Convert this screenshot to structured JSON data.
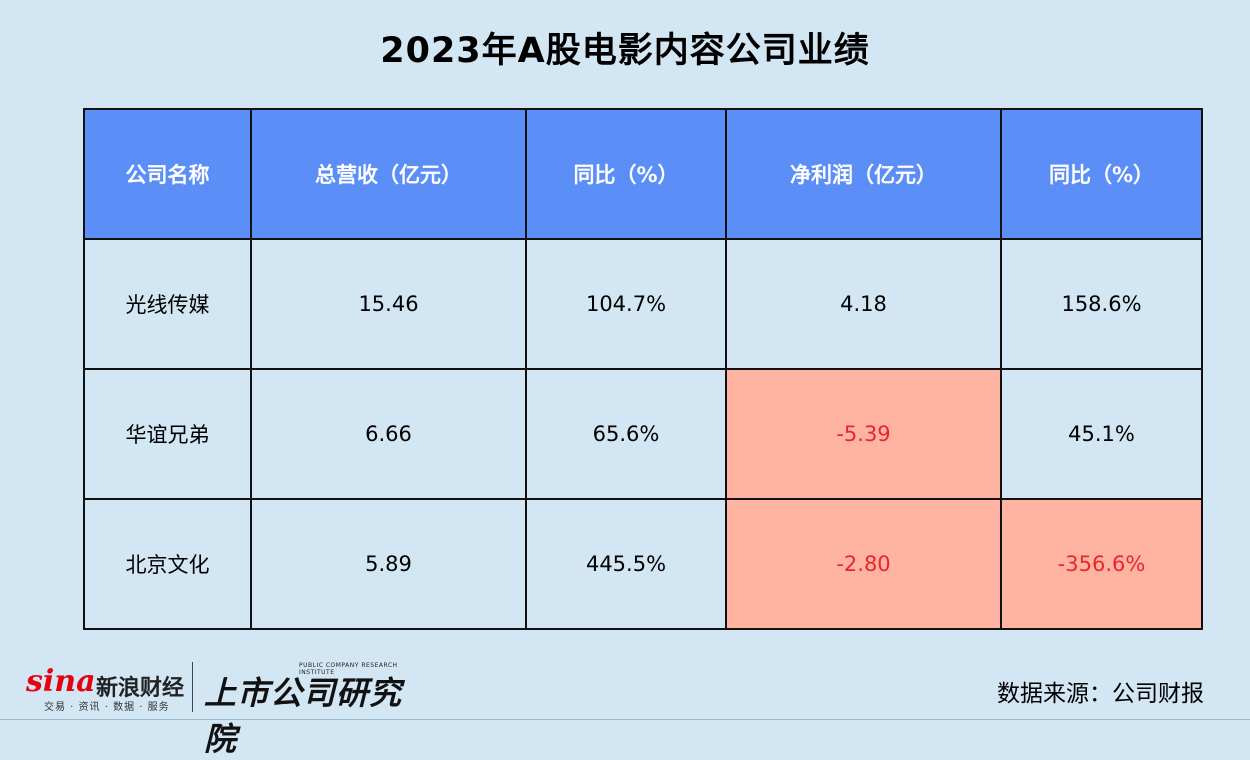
{
  "title": "2023年A股电影内容公司业绩",
  "table": {
    "headers": [
      "公司名称",
      "总营收（亿元）",
      "同比（%）",
      "净利润（亿元）",
      "同比（%）"
    ],
    "rows": [
      {
        "company": "光线传媒",
        "revenue": "15.46",
        "revenue_yoy": "104.7%",
        "net_profit": "4.18",
        "profit_yoy": "158.6%"
      },
      {
        "company": "华谊兄弟",
        "revenue": "6.66",
        "revenue_yoy": "65.6%",
        "net_profit": "-5.39",
        "profit_yoy": "45.1%"
      },
      {
        "company": "北京文化",
        "revenue": "5.89",
        "revenue_yoy": "445.5%",
        "net_profit": "-2.80",
        "profit_yoy": "-356.6%"
      }
    ]
  },
  "chart_data": {
    "type": "table",
    "title": "2023年A股电影内容公司业绩",
    "columns": [
      "公司名称",
      "总营收（亿元）",
      "同比（%）",
      "净利润（亿元）",
      "同比（%）"
    ],
    "rows": [
      [
        "光线传媒",
        15.46,
        104.7,
        4.18,
        158.6
      ],
      [
        "华谊兄弟",
        6.66,
        65.6,
        -5.39,
        45.1
      ],
      [
        "北京文化",
        5.89,
        445.5,
        -2.8,
        -356.6
      ]
    ]
  },
  "colors": {
    "header_bg": "#5b8ff7",
    "cell_bg": "#d2e6f4",
    "negative_bg": "#ffb4a2",
    "negative_text": "#e8262b"
  },
  "footer": {
    "sina_word": "sina",
    "sina_name": "新浪财经",
    "sina_tagline": "交易 · 资讯 · 数据 · 服务",
    "institute_en": "PUBLIC COMPANY RESEARCH INSTITUTE",
    "institute_cn": "上市公司研究院",
    "source": "数据来源：公司财报"
  }
}
